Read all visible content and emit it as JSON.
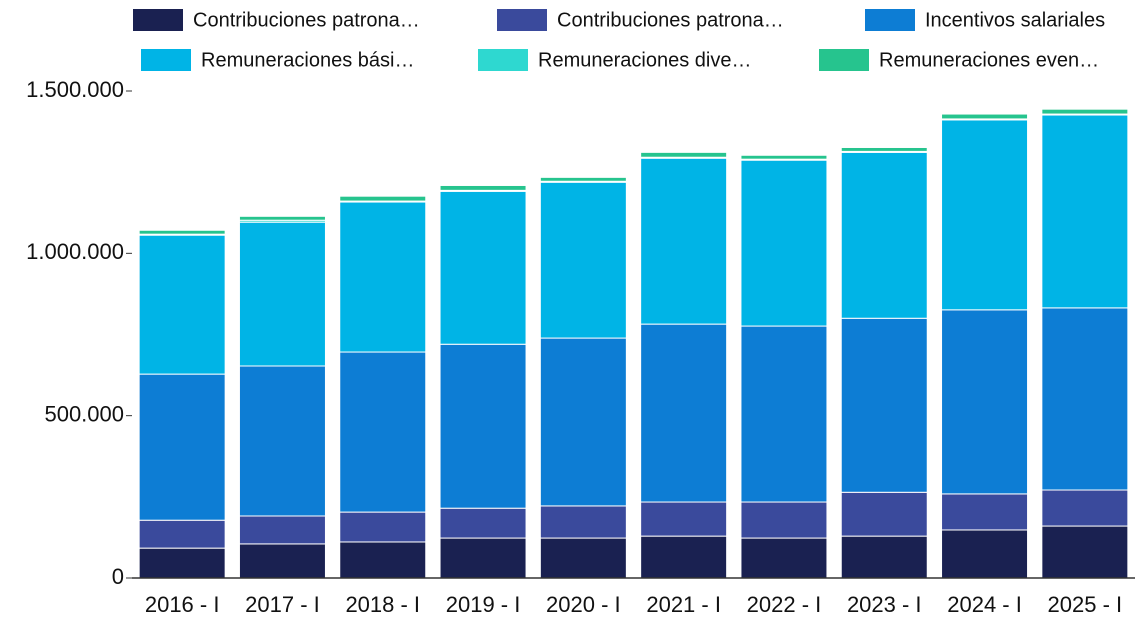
{
  "chart_data": {
    "type": "stacked_bar",
    "categories": [
      "2016 - I",
      "2017 - I",
      "2018 - I",
      "2019 - I",
      "2020 - I",
      "2021 - I",
      "2022 - I",
      "2023 - I",
      "2024 - I",
      "2025 - I"
    ],
    "series": [
      {
        "name": "Contribuciones patrona…",
        "color": "#1a2151",
        "values": [
          92000,
          105000,
          111000,
          123000,
          123000,
          129000,
          123000,
          129000,
          148000,
          160000
        ]
      },
      {
        "name": "Contribuciones patrona…",
        "color": "#3a4a9c",
        "values": [
          86000,
          86000,
          92000,
          92000,
          99000,
          105000,
          111000,
          135000,
          111000,
          111000
        ]
      },
      {
        "name": "Incentivos salariales",
        "color": "#0d7dd4",
        "values": [
          450000,
          462000,
          493000,
          505000,
          517000,
          548000,
          542000,
          536000,
          567000,
          561000
        ]
      },
      {
        "name": "Remuneraciones bási…",
        "color": "#00b4e6",
        "values": [
          428000,
          443000,
          462000,
          471000,
          480000,
          511000,
          511000,
          511000,
          585000,
          594000
        ]
      },
      {
        "name": "Remuneraciones dive…",
        "color": "#2ed8d0",
        "values": [
          3000,
          6000,
          3000,
          3000,
          3000,
          3000,
          3000,
          3000,
          3000,
          3000
        ]
      },
      {
        "name": "Remuneraciones even…",
        "color": "#26c48e",
        "values": [
          12000,
          12000,
          15000,
          15000,
          12000,
          15000,
          12000,
          12000,
          15000,
          15000
        ]
      }
    ],
    "ylim": [
      0,
      1500000
    ],
    "yticks": [
      0,
      {
        "value": 500000,
        "label": "500.000"
      },
      {
        "value": 1000000,
        "label": "1.000.000"
      },
      {
        "value": 1500000,
        "label": "1.500.000"
      }
    ],
    "legend": "top"
  }
}
